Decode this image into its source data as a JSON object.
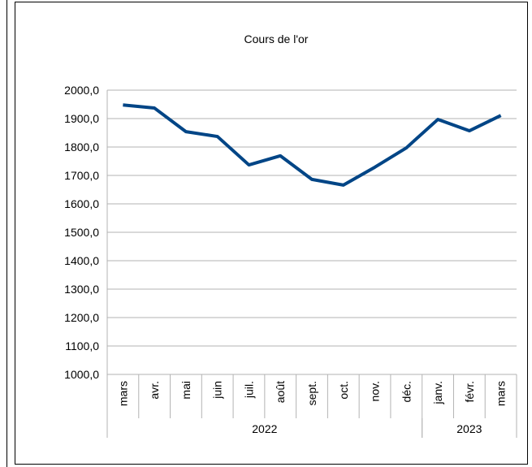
{
  "chart_data": {
    "type": "line",
    "title": "Cours de l'or",
    "categories": [
      "mars",
      "avr.",
      "mai",
      "juin",
      "juil.",
      "août",
      "sept.",
      "oct.",
      "nov.",
      "déc.",
      "janv.",
      "févr.",
      "mars"
    ],
    "category_groups": [
      {
        "label": "2022",
        "span": 10
      },
      {
        "label": "2023",
        "span": 3
      }
    ],
    "series": [
      {
        "color": "#004586",
        "values": [
          1948,
          1937,
          1854,
          1837,
          1737,
          1769,
          1686,
          1666,
          1729,
          1797,
          1897,
          1857,
          1911
        ]
      }
    ],
    "ylim": [
      1000,
      2000
    ],
    "yticks": [
      {
        "value": 1000,
        "label": "1000,0"
      },
      {
        "value": 1100,
        "label": "1100,0"
      },
      {
        "value": 1200,
        "label": "1200,0"
      },
      {
        "value": 1300,
        "label": "1300,0"
      },
      {
        "value": 1400,
        "label": "1400,0"
      },
      {
        "value": 1500,
        "label": "1500,0"
      },
      {
        "value": 1600,
        "label": "1600,0"
      },
      {
        "value": 1700,
        "label": "1700,0"
      },
      {
        "value": 1800,
        "label": "1800,0"
      },
      {
        "value": 1900,
        "label": "1900,0"
      },
      {
        "value": 2000,
        "label": "2000,0"
      }
    ],
    "grid": true
  }
}
